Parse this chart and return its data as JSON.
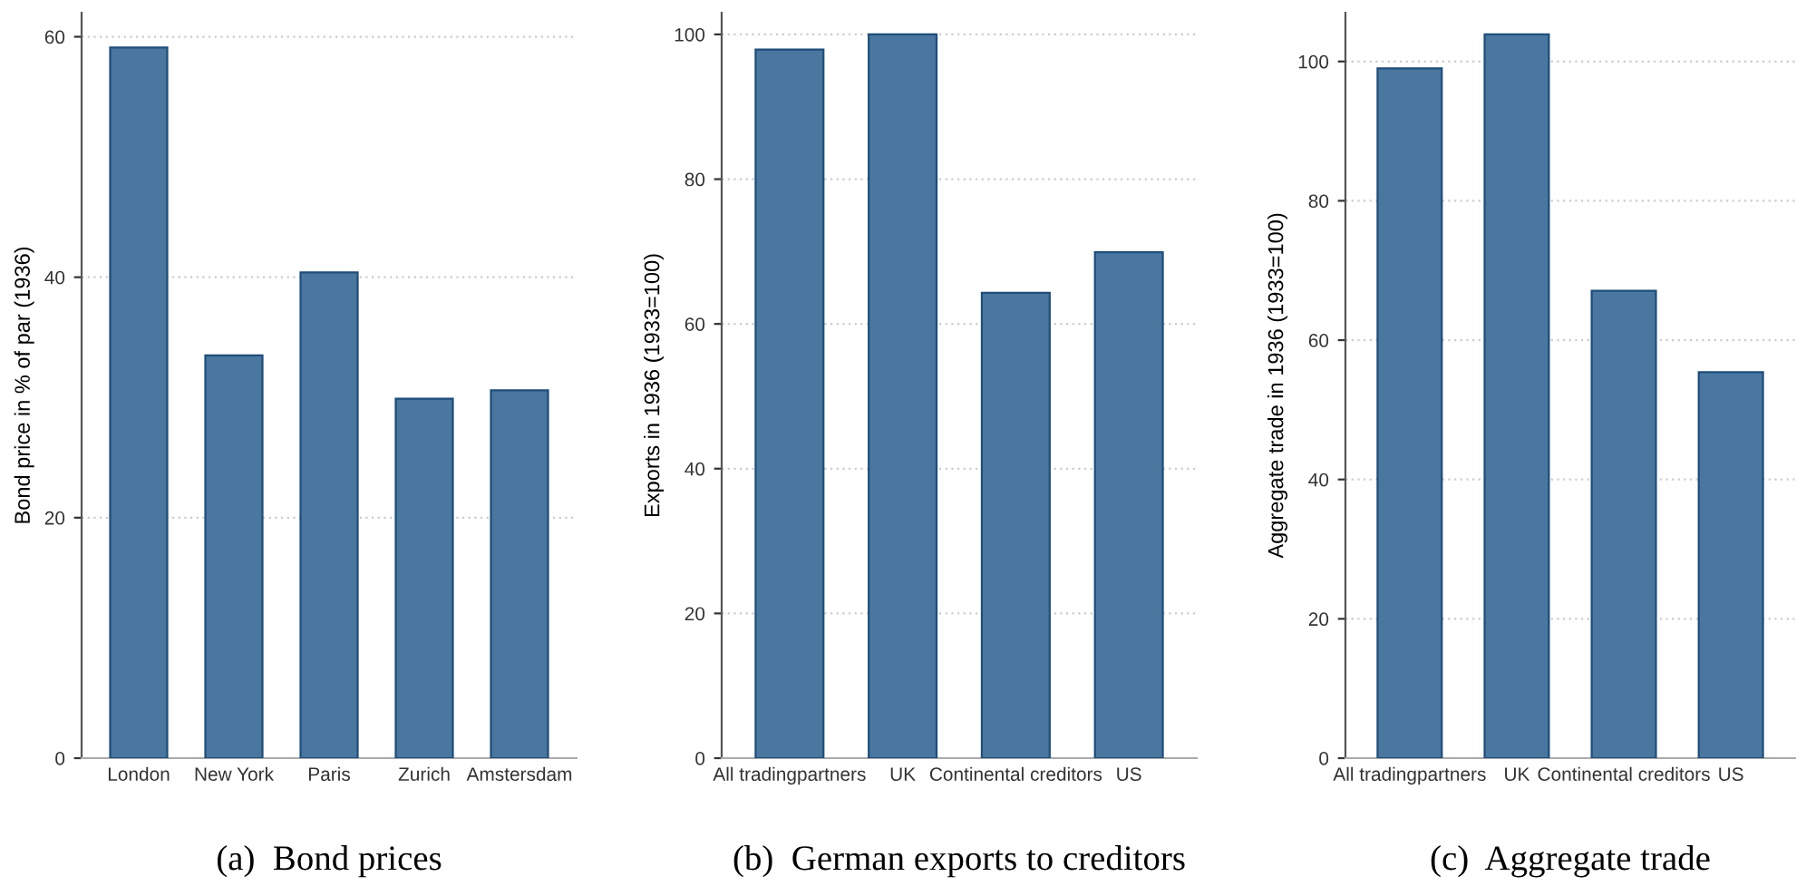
{
  "chart_data": [
    {
      "type": "bar",
      "title": "(a)  Bond prices",
      "ylabel": "Bond price in % of par (1936)",
      "categories": [
        "London",
        "New York",
        "Paris",
        "Zurich",
        "Amstersdam"
      ],
      "values": [
        59.1,
        33.5,
        40.4,
        29.9,
        30.6
      ],
      "color": "#4a77a0",
      "ylim": [
        0,
        62
      ],
      "yticks": [
        0,
        20,
        40,
        60
      ],
      "grid": "y"
    },
    {
      "type": "bar",
      "title": "(b)  German exports to creditors",
      "ylabel": "Exports in 1936 (1933=100)",
      "categories": [
        "All tradingpartners",
        "UK",
        "Continental creditors",
        "US"
      ],
      "values": [
        97.9,
        100,
        64.3,
        69.9
      ],
      "color": "#4a77a0",
      "ylim": [
        0,
        103
      ],
      "yticks": [
        0,
        20,
        40,
        60,
        80,
        100
      ],
      "grid": "y"
    },
    {
      "type": "bar",
      "title": "(c)  Aggregate trade",
      "ylabel": "Aggregate trade in 1936 (1933=100)",
      "categories": [
        "All tradingpartners",
        "UK",
        "Continental creditors",
        "US"
      ],
      "values": [
        99.0,
        103.9,
        67.1,
        55.4
      ],
      "color": "#4a77a0",
      "ylim": [
        0,
        107
      ],
      "yticks": [
        0,
        20,
        40,
        60,
        80,
        100
      ],
      "grid": "y"
    }
  ]
}
